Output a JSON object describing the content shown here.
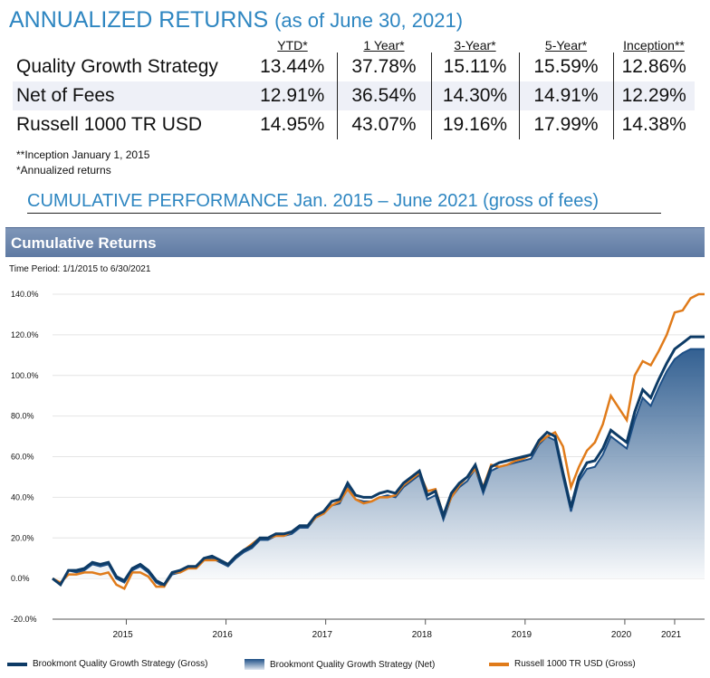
{
  "header": {
    "title": "ANNUALIZED RETURNS",
    "title_sub": "(as of June 30, 2021)"
  },
  "returns_table": {
    "columns": [
      "YTD*",
      "1 Year*",
      "3-Year*",
      "5-Year*",
      "Inception**"
    ],
    "rows": [
      {
        "label": "Quality Growth Strategy",
        "values": [
          "13.44%",
          "37.78%",
          "15.11%",
          "15.59%",
          "12.86%"
        ]
      },
      {
        "label": "Net of Fees",
        "values": [
          "12.91%",
          "36.54%",
          "14.30%",
          "14.91%",
          "12.29%"
        ]
      },
      {
        "label": "Russell 1000 TR USD",
        "values": [
          "14.95%",
          "43.07%",
          "19.16%",
          "17.99%",
          "14.38%"
        ]
      }
    ],
    "notes": [
      "**Inception January 1, 2015",
      "*Annualized returns"
    ]
  },
  "section_title": "CUMULATIVE PERFORMANCE Jan. 2015 – June 2021 (gross of fees)",
  "chart_data": {
    "type": "line",
    "title": "Cumulative Returns",
    "subtitle": "Time Period: 1/1/2015 to 6/30/2021",
    "ylim": [
      -20,
      140
    ],
    "y_ticks": [
      "-20.0%",
      "0.0%",
      "20.0%",
      "40.0%",
      "60.0%",
      "80.0%",
      "100.0%",
      "120.0%",
      "140.0%"
    ],
    "x_ticks": [
      "2015",
      "2016",
      "2017",
      "2018",
      "2019",
      "2020",
      "2021"
    ],
    "x_tick_positions": [
      2015.7,
      2016.7,
      2017.7,
      2018.7,
      2019.7,
      2020.7,
      2021.2
    ],
    "x_range": [
      2014.96,
      2021.5
    ],
    "x": [
      2014.96,
      2015.04,
      2015.12,
      2015.2,
      2015.28,
      2015.36,
      2015.44,
      2015.52,
      2015.6,
      2015.68,
      2015.76,
      2015.84,
      2015.92,
      2016.0,
      2016.08,
      2016.16,
      2016.24,
      2016.32,
      2016.4,
      2016.48,
      2016.56,
      2016.64,
      2016.72,
      2016.8,
      2016.88,
      2016.96,
      2017.04,
      2017.12,
      2017.2,
      2017.28,
      2017.36,
      2017.44,
      2017.52,
      2017.6,
      2017.68,
      2017.76,
      2017.84,
      2017.92,
      2018.0,
      2018.08,
      2018.16,
      2018.24,
      2018.32,
      2018.4,
      2018.48,
      2018.56,
      2018.64,
      2018.72,
      2018.8,
      2018.88,
      2018.96,
      2019.04,
      2019.12,
      2019.2,
      2019.28,
      2019.36,
      2019.44,
      2019.52,
      2019.6,
      2019.68,
      2019.76,
      2019.84,
      2019.92,
      2020.0,
      2020.08,
      2020.16,
      2020.24,
      2020.32,
      2020.4,
      2020.48,
      2020.56,
      2020.64,
      2020.72,
      2020.8,
      2020.88,
      2020.96,
      2021.04,
      2021.12,
      2021.2,
      2021.28,
      2021.36,
      2021.44,
      2021.5
    ],
    "series": [
      {
        "name": "Brookmont Quality Growth Strategy (Gross)",
        "color": "#0d3b66",
        "values": [
          0,
          -3,
          4,
          4,
          5,
          8,
          7,
          8,
          1,
          -1,
          5,
          7,
          4,
          -1,
          -3,
          3,
          4,
          6,
          6,
          10,
          11,
          9,
          7,
          11,
          14,
          16,
          20,
          20,
          22,
          22,
          23,
          26,
          26,
          31,
          33,
          38,
          39,
          47,
          41,
          40,
          40,
          42,
          43,
          42,
          47,
          50,
          53,
          41,
          43,
          31,
          42,
          47,
          50,
          56,
          44,
          55,
          57,
          58,
          59,
          60,
          61,
          68,
          72,
          70,
          52,
          35,
          50,
          57,
          58,
          64,
          73,
          70,
          67,
          82,
          93,
          89,
          98,
          106,
          113,
          116,
          119,
          119,
          119
        ]
      },
      {
        "name": "Brookmont Quality Growth Strategy (Net)",
        "color": "#7f9bbd",
        "values": [
          0,
          -3,
          4,
          3,
          4,
          7,
          6,
          7,
          0,
          -2,
          4,
          6,
          3,
          -2,
          -4,
          2,
          3,
          5,
          5,
          9,
          10,
          8,
          6,
          10,
          13,
          15,
          19,
          19,
          21,
          21,
          22,
          25,
          25,
          30,
          32,
          36,
          37,
          45,
          39,
          38,
          38,
          40,
          41,
          40,
          45,
          48,
          51,
          39,
          41,
          29,
          40,
          45,
          48,
          54,
          42,
          53,
          55,
          56,
          57,
          58,
          59,
          66,
          70,
          68,
          50,
          33,
          48,
          54,
          55,
          61,
          70,
          67,
          64,
          78,
          89,
          85,
          94,
          102,
          108,
          111,
          113,
          113,
          113
        ]
      },
      {
        "name": "Russell 1000 TR USD (Gross)",
        "color": "#e07b1a",
        "values": [
          0,
          -2,
          2,
          2,
          3,
          3,
          2,
          3,
          -3,
          -5,
          3,
          3,
          1,
          -4,
          -4,
          3,
          3,
          5,
          5,
          9,
          9,
          9,
          7,
          11,
          14,
          17,
          20,
          20,
          21,
          21,
          23,
          26,
          26,
          30,
          32,
          36,
          38,
          44,
          39,
          37,
          38,
          40,
          40,
          41,
          46,
          49,
          52,
          43,
          44,
          31,
          40,
          46,
          50,
          54,
          45,
          56,
          55,
          56,
          58,
          59,
          61,
          67,
          70,
          72,
          65,
          45,
          55,
          63,
          67,
          76,
          90,
          84,
          78,
          100,
          107,
          105,
          112,
          120,
          131,
          132,
          138,
          140,
          140
        ]
      }
    ],
    "legend_position": "bottom"
  }
}
